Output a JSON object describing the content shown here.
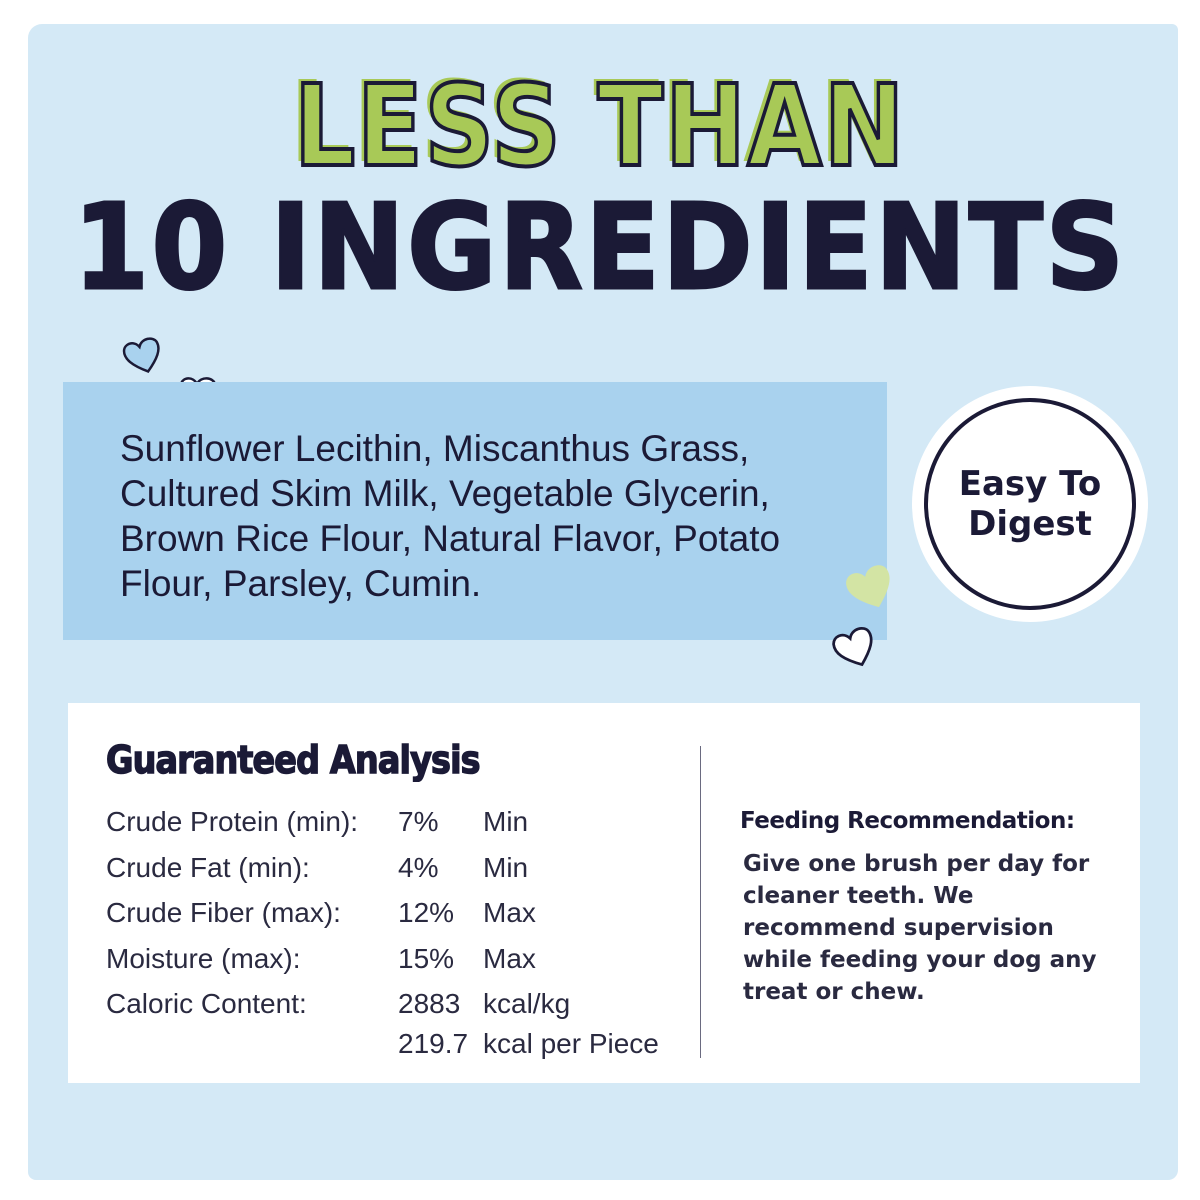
{
  "headline": {
    "line1": "LESS THAN",
    "line2": "10 INGREDIENTS"
  },
  "ingredients": "Sunflower Lecithin, Miscanthus Grass, Cultured Skim Milk, Vegetable Glycerin, Brown Rice Flour, Natural Flavor, Potato Flour, Parsley, Cumin.",
  "badge": {
    "line1": "Easy To",
    "line2": "Digest"
  },
  "analysis": {
    "title": "Guaranteed Analysis",
    "rows": [
      {
        "label": "Crude Protein (min):",
        "value": "7%",
        "unit": "Min"
      },
      {
        "label": "Crude Fat (min):",
        "value": "4%",
        "unit": "Min"
      },
      {
        "label": "Crude Fiber (max):",
        "value": "12%",
        "unit": "Max"
      },
      {
        "label": "Moisture (max):",
        "value": "15%",
        "unit": "Max"
      },
      {
        "label": "Caloric Content:",
        "value": "2883",
        "unit": "kcal/kg"
      },
      {
        "label": "",
        "value": "219.7",
        "unit": "kcal per Piece"
      }
    ]
  },
  "feeding": {
    "title": "Feeding Recommendation:",
    "text": "Give one brush per day for cleaner teeth. We recommend supervision while feeding your dog any treat or chew."
  },
  "colors": {
    "panel": "#d4e9f6",
    "ingredient_box": "#a9d2ee",
    "accent_green": "#a8c957",
    "navy": "#1b1a36"
  },
  "icons": [
    "heart-icon-blue",
    "heart-icon-white",
    "heart-icon-green",
    "heart-icon-white"
  ]
}
